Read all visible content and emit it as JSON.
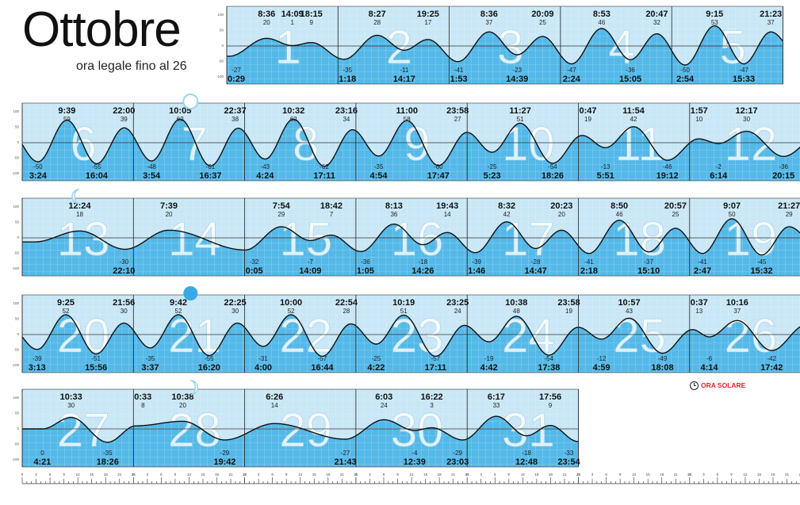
{
  "title": "Ottobre",
  "subtitle": "ora legale fino al 26",
  "legend_ora_solare": "ORA SOLARE",
  "colors": {
    "panel": "#c9e7f6",
    "fill": "#54b9e8",
    "gridline": "#ffffff",
    "curve": "#111111",
    "big_number": "#ffffff",
    "moon": "#3aa8e6",
    "accent": "#e0202a"
  },
  "chart_data": {
    "type": "line",
    "title": "Ottobre",
    "subtitle": "ora legale fino al 26",
    "y_ticks": [
      "100",
      "50",
      "0",
      "-50",
      "-100"
    ],
    "days": [
      {
        "day": 1,
        "tides": [
          {
            "t": "0:29",
            "h": -27,
            "label": "0:29"
          },
          {
            "t": "8:36",
            "h": 20,
            "label": "8:36"
          },
          {
            "t": "14:09",
            "h": 1,
            "label": "14:09"
          },
          {
            "t": "18:15",
            "h": 9,
            "label": "18:15"
          }
        ]
      },
      {
        "day": 2,
        "tides": [
          {
            "t": "1:18",
            "h": -35,
            "label": "1:18"
          },
          {
            "t": "8:27",
            "h": 28,
            "label": "8:27"
          },
          {
            "t": "14:17",
            "h": -11,
            "label": "14:17"
          },
          {
            "t": "19:25",
            "h": 17,
            "label": "19:25"
          }
        ]
      },
      {
        "day": 3,
        "tides": [
          {
            "t": "1:53",
            "h": -41,
            "label": "1:53"
          },
          {
            "t": "8:36",
            "h": 37,
            "label": "8:36"
          },
          {
            "t": "14:39",
            "h": -23,
            "label": "14:39"
          },
          {
            "t": "20:09",
            "h": 25,
            "label": "20:09"
          }
        ]
      },
      {
        "day": 4,
        "tides": [
          {
            "t": "2:24",
            "h": -47,
            "label": "2:24"
          },
          {
            "t": "8:53",
            "h": 46,
            "label": "8:53"
          },
          {
            "t": "15:05",
            "h": -36,
            "label": "15:05"
          },
          {
            "t": "20:47",
            "h": 32,
            "label": "20:47"
          }
        ]
      },
      {
        "day": 5,
        "tides": [
          {
            "t": "2:54",
            "h": -50,
            "label": "2:54"
          },
          {
            "t": "9:15",
            "h": 53,
            "label": "9:15"
          },
          {
            "t": "15:33",
            "h": -47,
            "label": "15:33"
          },
          {
            "t": "21:23",
            "h": 37,
            "label": "21:23"
          }
        ]
      },
      {
        "day": 6,
        "tides": [
          {
            "t": "3:24",
            "h": -50,
            "label": "3:24"
          },
          {
            "t": "9:39",
            "h": 59,
            "label": "9:39"
          },
          {
            "t": "16:04",
            "h": -55,
            "label": "16:04"
          },
          {
            "t": "22:00",
            "h": 39,
            "label": "22:00"
          }
        ]
      },
      {
        "day": 7,
        "moon": "full",
        "tides": [
          {
            "t": "3:54",
            "h": -48,
            "label": "3:54"
          },
          {
            "t": "10:05",
            "h": 62,
            "label": "10:05"
          },
          {
            "t": "16:37",
            "h": -61,
            "label": "16:37"
          },
          {
            "t": "22:37",
            "h": 38,
            "label": "22:37"
          }
        ]
      },
      {
        "day": 8,
        "tides": [
          {
            "t": "4:24",
            "h": -43,
            "label": "4:24"
          },
          {
            "t": "10:32",
            "h": 62,
            "label": "10:32"
          },
          {
            "t": "17:11",
            "h": -62,
            "label": "17:11"
          },
          {
            "t": "23:16",
            "h": 34,
            "label": "23:16"
          }
        ]
      },
      {
        "day": 9,
        "tides": [
          {
            "t": "4:54",
            "h": -35,
            "label": "4:54"
          },
          {
            "t": "11:00",
            "h": 58,
            "label": "11:00"
          },
          {
            "t": "17:47",
            "h": -60,
            "label": "17:47"
          },
          {
            "t": "23:58",
            "h": 27,
            "label": "23:58"
          }
        ]
      },
      {
        "day": 10,
        "tides": [
          {
            "t": "5:23",
            "h": -25,
            "label": "5:23"
          },
          {
            "t": "11:27",
            "h": 51,
            "label": "11:27"
          },
          {
            "t": "18:26",
            "h": -54,
            "label": "18:26"
          }
        ]
      },
      {
        "day": 11,
        "tides": [
          {
            "t": "0:47",
            "h": 19,
            "label": "0:47"
          },
          {
            "t": "5:51",
            "h": -13,
            "label": "5:51"
          },
          {
            "t": "11:54",
            "h": 42,
            "label": "11:54"
          },
          {
            "t": "19:12",
            "h": -46,
            "label": "19:12"
          }
        ]
      },
      {
        "day": 12,
        "tides": [
          {
            "t": "1:57",
            "h": 10,
            "label": "1:57"
          },
          {
            "t": "6:14",
            "h": -2,
            "label": "6:14"
          },
          {
            "t": "12:17",
            "h": 30,
            "label": "12:17"
          },
          {
            "t": "20:15",
            "h": -36,
            "label": "20:15"
          }
        ]
      },
      {
        "day": 13,
        "moon": "last-quarter",
        "tides": [
          {
            "t": "12:24",
            "h": 18,
            "label": "12:24"
          },
          {
            "t": "22:10",
            "h": -30,
            "label": "22:10"
          }
        ]
      },
      {
        "day": 14,
        "tides": [
          {
            "t": "7:39",
            "h": 20,
            "label": "7:39"
          }
        ]
      },
      {
        "day": 15,
        "tides": [
          {
            "t": "0:05",
            "h": -32,
            "label": "0:05"
          },
          {
            "t": "7:54",
            "h": 29,
            "label": "7:54"
          },
          {
            "t": "14:09",
            "h": -7,
            "label": "14:09"
          },
          {
            "t": "18:42",
            "h": 7,
            "label": "18:42"
          }
        ]
      },
      {
        "day": 16,
        "tides": [
          {
            "t": "1:05",
            "h": -36,
            "label": "1:05"
          },
          {
            "t": "8:13",
            "h": 36,
            "label": "8:13"
          },
          {
            "t": "14:26",
            "h": -18,
            "label": "14:26"
          },
          {
            "t": "19:43",
            "h": 14,
            "label": "19:43"
          }
        ]
      },
      {
        "day": 17,
        "tides": [
          {
            "t": "1:46",
            "h": -39,
            "label": "1:46"
          },
          {
            "t": "8:32",
            "h": 42,
            "label": "8:32"
          },
          {
            "t": "14:47",
            "h": -28,
            "label": "14:47"
          },
          {
            "t": "20:23",
            "h": 20,
            "label": "20:23"
          }
        ]
      },
      {
        "day": 18,
        "tides": [
          {
            "t": "2:18",
            "h": -41,
            "label": "2:18"
          },
          {
            "t": "8:50",
            "h": 46,
            "label": "8:50"
          },
          {
            "t": "15:10",
            "h": -37,
            "label": "15:10"
          },
          {
            "t": "20:57",
            "h": 25,
            "label": "20:57"
          }
        ]
      },
      {
        "day": 19,
        "tides": [
          {
            "t": "2:47",
            "h": -41,
            "label": "2:47"
          },
          {
            "t": "9:07",
            "h": 50,
            "label": "9:07"
          },
          {
            "t": "15:32",
            "h": -45,
            "label": "15:32"
          },
          {
            "t": "21:27",
            "h": 29,
            "label": "21:27"
          }
        ]
      },
      {
        "day": 20,
        "tides": [
          {
            "t": "3:13",
            "h": -39,
            "label": "3:13"
          },
          {
            "t": "9:25",
            "h": 52,
            "label": "9:25"
          },
          {
            "t": "15:56",
            "h": -51,
            "label": "15:56"
          },
          {
            "t": "21:56",
            "h": 30,
            "label": "21:56"
          }
        ]
      },
      {
        "day": 21,
        "moon": "new",
        "tides": [
          {
            "t": "3:37",
            "h": -35,
            "label": "3:37"
          },
          {
            "t": "9:42",
            "h": 52,
            "label": "9:42"
          },
          {
            "t": "16:20",
            "h": -55,
            "label": "16:20"
          },
          {
            "t": "22:25",
            "h": 30,
            "label": "22:25"
          }
        ]
      },
      {
        "day": 22,
        "tides": [
          {
            "t": "4:00",
            "h": -31,
            "label": "4:00"
          },
          {
            "t": "10:00",
            "h": 52,
            "label": "10:00"
          },
          {
            "t": "16:44",
            "h": -57,
            "label": "16:44"
          },
          {
            "t": "22:54",
            "h": 28,
            "label": "22:54"
          }
        ]
      },
      {
        "day": 23,
        "tides": [
          {
            "t": "4:22",
            "h": -25,
            "label": "4:22"
          },
          {
            "t": "10:19",
            "h": 51,
            "label": "10:19"
          },
          {
            "t": "17:11",
            "h": -57,
            "label": "17:11"
          },
          {
            "t": "23:25",
            "h": 24,
            "label": "23:25"
          }
        ]
      },
      {
        "day": 24,
        "tides": [
          {
            "t": "4:42",
            "h": -19,
            "label": "4:42"
          },
          {
            "t": "10:38",
            "h": 48,
            "label": "10:38"
          },
          {
            "t": "17:38",
            "h": -54,
            "label": "17:38"
          },
          {
            "t": "23:58",
            "h": 19,
            "label": "23:58"
          }
        ]
      },
      {
        "day": 25,
        "tides": [
          {
            "t": "4:59",
            "h": -12,
            "label": "4:59"
          },
          {
            "t": "10:57",
            "h": 43,
            "label": "10:57"
          },
          {
            "t": "18:08",
            "h": -49,
            "label": "18:08"
          }
        ]
      },
      {
        "day": 26,
        "tides": [
          {
            "t": "0:37",
            "h": 13,
            "label": "0:37"
          },
          {
            "t": "4:14",
            "h": -6,
            "label": "4:14"
          },
          {
            "t": "10:16",
            "h": 37,
            "label": "10:16"
          },
          {
            "t": "17:42",
            "h": -42,
            "label": "17:42"
          }
        ]
      },
      {
        "day": 27,
        "tides": [
          {
            "t": "4:21",
            "h": 0,
            "label": "4:21"
          },
          {
            "t": "10:33",
            "h": 30,
            "label": "10:33"
          },
          {
            "t": "18:26",
            "h": -35,
            "label": "18:26"
          }
        ]
      },
      {
        "day": 28,
        "moon": "first-quarter",
        "tides": [
          {
            "t": "0:33",
            "h": 8,
            "label": "0:33"
          },
          {
            "t": "10:38",
            "h": 20,
            "label": "10:38"
          },
          {
            "t": "19:42",
            "h": -29,
            "label": "19:42"
          }
        ]
      },
      {
        "day": 29,
        "tides": [
          {
            "t": "6:26",
            "h": 14,
            "label": "6:26"
          },
          {
            "t": "21:43",
            "h": -27,
            "label": "21:43"
          }
        ]
      },
      {
        "day": 30,
        "tides": [
          {
            "t": "6:03",
            "h": 24,
            "label": "6:03"
          },
          {
            "t": "12:39",
            "h": -4,
            "label": "12:39"
          },
          {
            "t": "16:22",
            "h": 3,
            "label": "16:22"
          },
          {
            "t": "23:03",
            "h": -29,
            "label": "23:03"
          }
        ]
      },
      {
        "day": 31,
        "tides": [
          {
            "t": "6:17",
            "h": 33,
            "label": "6:17"
          },
          {
            "t": "12:48",
            "h": -18,
            "label": "12:48"
          },
          {
            "t": "17:56",
            "h": 9,
            "label": "17:56"
          },
          {
            "t": "23:54",
            "h": -33,
            "label": "23:54"
          }
        ]
      }
    ],
    "hour_scale": {
      "ticks": [
        "0",
        "3",
        "6",
        "9",
        "12",
        "15",
        "18",
        "21",
        "24"
      ]
    }
  }
}
